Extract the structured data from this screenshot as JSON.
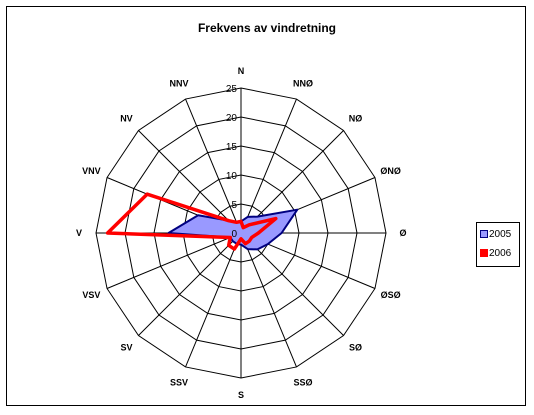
{
  "chart_data": {
    "type": "radar",
    "title": "Frekvens av vindretning",
    "categories": [
      "N",
      "NNØ",
      "NØ",
      "ØNØ",
      "Ø",
      "ØSØ",
      "SØ",
      "SSØ",
      "S",
      "SSV",
      "SV",
      "VSV",
      "V",
      "VNV",
      "NV",
      "NNV"
    ],
    "rlim": [
      0,
      25
    ],
    "ticks": [
      "0",
      "5",
      "10",
      "15",
      "20",
      "25"
    ],
    "grid": true,
    "legend_position": "right",
    "series": [
      {
        "name": "2005",
        "fill": "#9999ff",
        "stroke": "#000080",
        "values": [
          2,
          3,
          4,
          10.5,
          7,
          5,
          4,
          3,
          2,
          2,
          2,
          2,
          12.5,
          8,
          3,
          2
        ]
      },
      {
        "name": "2006",
        "fill": "none",
        "stroke": "#ff0000",
        "values": [
          2,
          1,
          2,
          6.5,
          3,
          2,
          2,
          2,
          1,
          3,
          3,
          2,
          23,
          17.5,
          3,
          2
        ]
      }
    ]
  }
}
